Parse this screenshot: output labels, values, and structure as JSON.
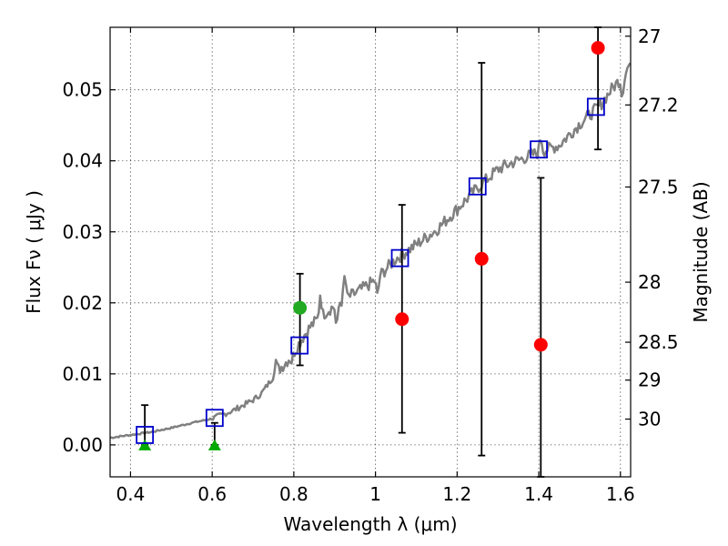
{
  "chart_data": {
    "type": "scatter",
    "xlabel": "Wavelength  λ (μm)",
    "ylabel": "Flux  Fν  ( μJy )",
    "y2label": "Magnitude (AB)",
    "xlim": [
      0.35,
      1.625
    ],
    "ylim": [
      -0.0045,
      0.0588
    ],
    "grid": true,
    "x_ticks": [
      0.4,
      0.6,
      0.8,
      1.0,
      1.2,
      1.4,
      1.6
    ],
    "x_tick_labels": [
      "0.4",
      "0.6",
      "0.8",
      "1",
      "1.2",
      "1.4",
      "1.6"
    ],
    "y_ticks": [
      0.0,
      0.01,
      0.02,
      0.03,
      0.04,
      0.05
    ],
    "y_tick_labels": [
      "0.00",
      "0.01",
      "0.02",
      "0.03",
      "0.04",
      "0.05"
    ],
    "magnitude_ticks": [
      27,
      27.2,
      27.5,
      28,
      28.5,
      29,
      30
    ],
    "magnitude_tick_labels": [
      "27",
      "27.2",
      "27.5",
      "28",
      "28.5",
      "29",
      "30"
    ],
    "model_spectrum": {
      "color": "#808080",
      "x": [
        0.35,
        0.4,
        0.45,
        0.5,
        0.55,
        0.6,
        0.65,
        0.7,
        0.72,
        0.74,
        0.76,
        0.78,
        0.8,
        0.82,
        0.84,
        0.86,
        0.88,
        0.9,
        0.92,
        0.95,
        1.0,
        1.05,
        1.1,
        1.15,
        1.2,
        1.25,
        1.3,
        1.35,
        1.4,
        1.45,
        1.5,
        1.55,
        1.58,
        1.6,
        1.625
      ],
      "y": [
        0.001,
        0.0014,
        0.0018,
        0.0024,
        0.0031,
        0.0037,
        0.0048,
        0.0063,
        0.0072,
        0.0088,
        0.0104,
        0.0116,
        0.013,
        0.015,
        0.0166,
        0.0178,
        0.0188,
        0.0196,
        0.0204,
        0.0213,
        0.0232,
        0.0262,
        0.0282,
        0.0303,
        0.0332,
        0.0362,
        0.0388,
        0.0401,
        0.0412,
        0.0422,
        0.0452,
        0.0478,
        0.0502,
        0.0515,
        0.0538
      ],
      "spikes": [
        {
          "x": 0.755,
          "y": 0.0122
        },
        {
          "x": 0.795,
          "y": 0.0118
        },
        {
          "x": 0.865,
          "y": 0.0216
        },
        {
          "x": 0.905,
          "y": 0.0159
        },
        {
          "x": 0.925,
          "y": 0.0241
        },
        {
          "x": 1.005,
          "y": 0.0207
        },
        {
          "x": 1.405,
          "y": 0.0438
        },
        {
          "x": 1.605,
          "y": 0.0489
        }
      ]
    },
    "synthetic_photometry": {
      "marker": "open-square",
      "color": "#0000cc",
      "x": [
        0.435,
        0.606,
        0.814,
        1.06,
        1.25,
        1.4,
        1.54
      ],
      "y": [
        0.0014,
        0.0038,
        0.014,
        0.0263,
        0.0364,
        0.0416,
        0.0476
      ]
    },
    "observed_red": {
      "marker": "circle",
      "color": "#ff0000",
      "points": [
        {
          "x": 1.065,
          "y": 0.0177,
          "err_low": 0.0017,
          "err_high": 0.0338
        },
        {
          "x": 1.26,
          "y": 0.0262,
          "err_low": -0.0015,
          "err_high": 0.0538
        },
        {
          "x": 1.405,
          "y": 0.0141,
          "err_low": -0.0045,
          "err_high": 0.0376
        },
        {
          "x": 1.545,
          "y": 0.0559,
          "err_low": 0.0416,
          "err_high": 0.0588
        }
      ]
    },
    "observed_green": {
      "marker": "circle",
      "color": "#22aa22",
      "points": [
        {
          "x": 0.815,
          "y": 0.0193,
          "err_low": 0.0112,
          "err_high": 0.0241
        }
      ]
    },
    "upper_limits": {
      "marker": "triangle",
      "color": "#00aa00",
      "points": [
        {
          "x": 0.435,
          "y": 0.0,
          "err_low": 0.0,
          "err_high": 0.0056
        },
        {
          "x": 0.606,
          "y": 0.0,
          "err_low": 0.0,
          "err_high": 0.0031
        }
      ]
    }
  }
}
